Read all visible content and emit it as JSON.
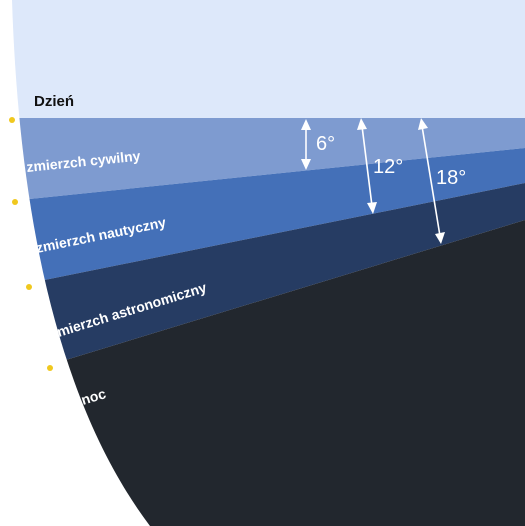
{
  "diagram": {
    "zones": [
      {
        "id": "day",
        "label": "Dzień",
        "color": "#dde8fa"
      },
      {
        "id": "civil",
        "label": "zmierzch cywilny",
        "color": "#7e9bd0"
      },
      {
        "id": "nautical",
        "label": "zmierzch nautyczny",
        "color": "#4470b8"
      },
      {
        "id": "astronomical",
        "label": "zmierzch astronomiczny",
        "color": "#263c63"
      },
      {
        "id": "night",
        "label": "noc",
        "color": "#22272e"
      }
    ],
    "angles": [
      {
        "label": "6°",
        "degrees": 6
      },
      {
        "label": "12°",
        "degrees": 12
      },
      {
        "label": "18°",
        "degrees": 18
      }
    ],
    "colors": {
      "boundary_marker": "#f0c81e",
      "arrow": "#ffffff",
      "background": "#ffffff"
    }
  }
}
